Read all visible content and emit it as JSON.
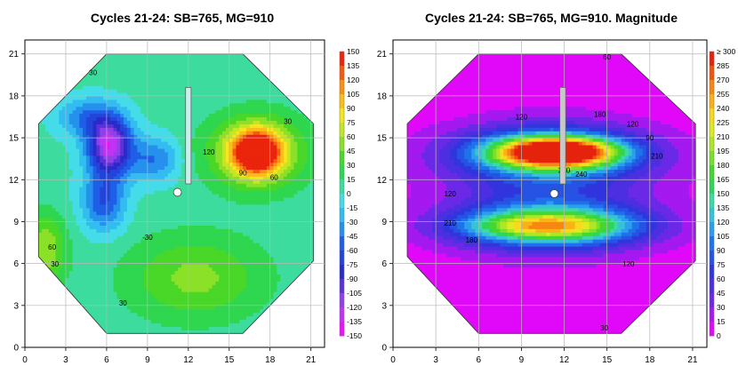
{
  "chart_data": [
    {
      "type": "heatmap",
      "subtype": "filled-contour",
      "title": "Cycles 21-24: SB=765, MG=910",
      "xlim": [
        0,
        22
      ],
      "ylim": [
        0,
        22
      ],
      "x_ticks": [
        0,
        3,
        6,
        9,
        12,
        15,
        18,
        21
      ],
      "y_ticks": [
        0,
        3,
        6,
        9,
        12,
        15,
        18,
        21
      ],
      "x_tick_labels": [
        "0",
        "3",
        "6",
        "9",
        "12",
        "15",
        "18",
        "21"
      ],
      "y_tick_labels": [
        "0",
        "3",
        "6",
        "9",
        "12",
        "15",
        "18",
        "21"
      ],
      "grid": true,
      "colorbar": {
        "min": -150,
        "max": 150,
        "step": 15,
        "labels": [
          "150",
          "135",
          "120",
          "105",
          "90",
          "75",
          "60",
          "45",
          "30",
          "15",
          "0",
          "-15",
          "-30",
          "-45",
          "-60",
          "-75",
          "-90",
          "-105",
          "-120",
          "-135",
          "-150"
        ]
      },
      "contour_labels": [
        {
          "x": 5.0,
          "y": 19.5,
          "text": "30"
        },
        {
          "x": 19.3,
          "y": 16.0,
          "text": "30"
        },
        {
          "x": 13.5,
          "y": 13.8,
          "text": "120"
        },
        {
          "x": 16.0,
          "y": 12.3,
          "text": "90"
        },
        {
          "x": 18.3,
          "y": 12.0,
          "text": "60"
        },
        {
          "x": 9.0,
          "y": 7.7,
          "text": "-30"
        },
        {
          "x": 2.0,
          "y": 7.0,
          "text": "60"
        },
        {
          "x": 2.2,
          "y": 5.8,
          "text": "30"
        },
        {
          "x": 7.2,
          "y": 3.0,
          "text": "30"
        }
      ],
      "components": [
        {
          "name": "dark-blue-left",
          "x": 6.2,
          "y": 14.5,
          "sx": 1.6,
          "sy": 2.0,
          "amp": -135
        },
        {
          "name": "blue-lower-left",
          "x": 5.8,
          "y": 10.5,
          "sx": 1.6,
          "sy": 2.2,
          "amp": -65
        },
        {
          "name": "blue-top-left",
          "x": 4.5,
          "y": 16.5,
          "sx": 2.2,
          "sy": 1.4,
          "amp": -45
        },
        {
          "name": "blue-mid",
          "x": 9.5,
          "y": 13.5,
          "sx": 1.8,
          "sy": 1.6,
          "amp": -50
        },
        {
          "name": "red-peak",
          "x": 17.0,
          "y": 14.0,
          "sx": 1.7,
          "sy": 1.5,
          "amp": 150
        },
        {
          "name": "hot-right-band",
          "x": 17.0,
          "y": 14.0,
          "sx": 3.6,
          "sy": 2.6,
          "amp": 70
        },
        {
          "name": "green-lower",
          "x": 12.5,
          "y": 5.0,
          "sx": 5.0,
          "sy": 3.0,
          "amp": 45
        },
        {
          "name": "green-left-edge",
          "x": 1.5,
          "y": 7.0,
          "sx": 1.5,
          "sy": 2.5,
          "amp": 55
        }
      ],
      "baseline": 5,
      "overlays": [
        {
          "type": "rect",
          "label": "control rod",
          "x": [
            11.8,
            12.2
          ],
          "y": [
            11.7,
            18.6
          ]
        },
        {
          "type": "circle",
          "label": "marker",
          "x": 11.2,
          "y": 11.1
        }
      ]
    },
    {
      "type": "heatmap",
      "subtype": "filled-contour",
      "title": "Cycles 21-24: SB=765, MG=910. Magnitude",
      "xlim": [
        0,
        22
      ],
      "ylim": [
        0,
        22
      ],
      "x_ticks": [
        0,
        3,
        6,
        9,
        12,
        15,
        18,
        21
      ],
      "y_ticks": [
        0,
        3,
        6,
        9,
        12,
        15,
        18,
        21
      ],
      "x_tick_labels": [
        "0",
        "3",
        "6",
        "9",
        "12",
        "15",
        "18",
        "21"
      ],
      "y_tick_labels": [
        "0",
        "3",
        "6",
        "9",
        "12",
        "15",
        "18",
        "21"
      ],
      "grid": true,
      "colorbar": {
        "min": 0,
        "max": 300,
        "step": 15,
        "labels": [
          "≥ 300",
          "285",
          "270",
          "255",
          "240",
          "225",
          "210",
          "195",
          "180",
          "165",
          "150",
          "135",
          "120",
          "105",
          "90",
          "75",
          "60",
          "45",
          "30",
          "15",
          "0"
        ]
      },
      "contour_labels": [
        {
          "x": 15.0,
          "y": 20.6,
          "text": "60"
        },
        {
          "x": 9.0,
          "y": 16.3,
          "text": "120"
        },
        {
          "x": 14.5,
          "y": 16.5,
          "text": "180"
        },
        {
          "x": 16.8,
          "y": 15.8,
          "text": "120"
        },
        {
          "x": 18.0,
          "y": 14.8,
          "text": "90"
        },
        {
          "x": 18.5,
          "y": 13.5,
          "text": "210"
        },
        {
          "x": 12.0,
          "y": 12.5,
          "text": "270"
        },
        {
          "x": 13.2,
          "y": 12.2,
          "text": "240"
        },
        {
          "x": 4.0,
          "y": 10.8,
          "text": "120"
        },
        {
          "x": 4.0,
          "y": 8.7,
          "text": "210"
        },
        {
          "x": 5.5,
          "y": 7.5,
          "text": "180"
        },
        {
          "x": 16.5,
          "y": 5.8,
          "text": "120"
        },
        {
          "x": 14.8,
          "y": 1.2,
          "text": "30"
        }
      ],
      "components": [
        {
          "name": "red-core",
          "x": 11.5,
          "y": 14.0,
          "sx": 3.8,
          "sy": 0.95,
          "amp": 270
        },
        {
          "name": "upper-band",
          "x": 11.0,
          "y": 14.0,
          "sx": 6.2,
          "sy": 1.7,
          "amp": 130
        },
        {
          "name": "lower-band",
          "x": 11.0,
          "y": 8.7,
          "sx": 6.2,
          "sy": 1.4,
          "amp": 175
        },
        {
          "name": "lower-core",
          "x": 10.5,
          "y": 8.7,
          "sx": 4.5,
          "sy": 0.7,
          "amp": 50
        },
        {
          "name": "mid-fill",
          "x": 11.0,
          "y": 11.3,
          "sx": 7.0,
          "sy": 4.0,
          "amp": 60
        }
      ],
      "baseline": 5,
      "overlays": [
        {
          "type": "rect",
          "label": "control rod",
          "x": [
            11.7,
            12.1
          ],
          "y": [
            11.7,
            18.6
          ]
        },
        {
          "type": "circle",
          "label": "marker",
          "x": 11.3,
          "y": 11.0
        }
      ]
    }
  ]
}
